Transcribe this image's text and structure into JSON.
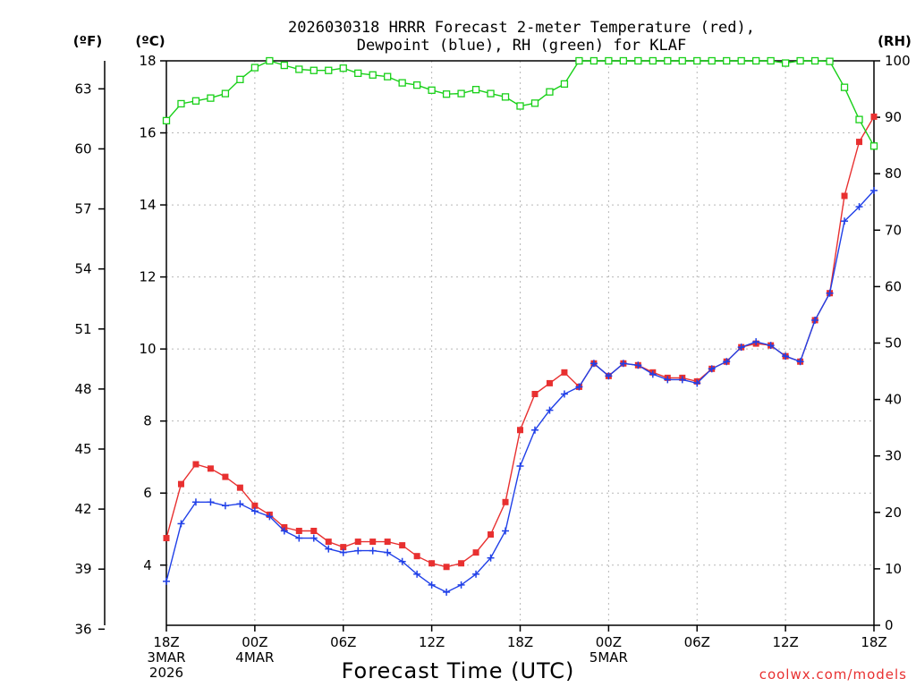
{
  "chart_data": {
    "type": "line",
    "title_line1": "2026030318 HRRR Forecast 2-meter Temperature (red),",
    "title_line2": "Dewpoint (blue), RH (green) for KLAF",
    "xlabel": "Forecast Time (UTC)",
    "credit": "coolwx.com/models",
    "units": {
      "fahrenheit": "(ºF)",
      "celsius": "(ºC)",
      "rh": "(RH)"
    },
    "ylim_celsius": [
      2.33,
      18.0
    ],
    "ylim_rh": [
      0,
      100
    ],
    "yticks_celsius": [
      "4",
      "6",
      "8",
      "10",
      "12",
      "14",
      "16",
      "18"
    ],
    "yticks_fahrenheit": [
      "36",
      "39",
      "42",
      "45",
      "48",
      "51",
      "54",
      "57",
      "60",
      "63"
    ],
    "yticks_rh": [
      "0",
      "10",
      "20",
      "30",
      "40",
      "50",
      "60",
      "70",
      "80",
      "90",
      "100"
    ],
    "xlim_hours": [
      0,
      48
    ],
    "xticks": [
      {
        "hour": 0,
        "lines": [
          "18Z",
          "3MAR",
          "2026"
        ]
      },
      {
        "hour": 6,
        "lines": [
          "00Z",
          "4MAR"
        ]
      },
      {
        "hour": 12,
        "lines": [
          "06Z"
        ]
      },
      {
        "hour": 18,
        "lines": [
          "12Z"
        ]
      },
      {
        "hour": 24,
        "lines": [
          "18Z"
        ]
      },
      {
        "hour": 30,
        "lines": [
          "00Z",
          "5MAR"
        ]
      },
      {
        "hour": 36,
        "lines": [
          "06Z"
        ]
      },
      {
        "hour": 42,
        "lines": [
          "12Z"
        ]
      },
      {
        "hour": 48,
        "lines": [
          "18Z"
        ]
      }
    ],
    "series": [
      {
        "name": "Temperature (red)",
        "color": "#e83030",
        "units": "C",
        "values": [
          4.75,
          6.25,
          6.8,
          6.68,
          6.45,
          6.15,
          5.65,
          5.4,
          5.05,
          4.95,
          4.95,
          4.65,
          4.5,
          4.65,
          4.65,
          4.65,
          4.55,
          4.25,
          4.05,
          3.95,
          4.05,
          4.35,
          4.85,
          5.75,
          7.75,
          8.75,
          9.05,
          9.35,
          8.95,
          9.6,
          9.25,
          9.6,
          9.55,
          9.35,
          9.2,
          9.2,
          9.1,
          9.45,
          9.65,
          10.05,
          10.15,
          10.1,
          9.8,
          9.65,
          10.8,
          11.55,
          14.25,
          15.75,
          16.45
        ]
      },
      {
        "name": "Dewpoint (blue)",
        "color": "#2040e8",
        "units": "C",
        "values": [
          3.55,
          5.15,
          5.75,
          5.75,
          5.65,
          5.7,
          5.5,
          5.35,
          4.95,
          4.75,
          4.75,
          4.45,
          4.35,
          4.4,
          4.4,
          4.35,
          4.1,
          3.75,
          3.45,
          3.25,
          3.45,
          3.75,
          4.2,
          4.95,
          6.75,
          7.75,
          8.3,
          8.75,
          8.95,
          9.6,
          9.25,
          9.6,
          9.55,
          9.3,
          9.15,
          9.15,
          9.05,
          9.45,
          9.65,
          10.05,
          10.2,
          10.1,
          9.8,
          9.65,
          10.8,
          11.55,
          13.55,
          13.95,
          14.4
        ]
      },
      {
        "name": "RH (green)",
        "color": "#18d018",
        "units": "%",
        "values": [
          89.4,
          92.4,
          92.9,
          93.4,
          94.2,
          96.7,
          98.8,
          100,
          99.2,
          98.5,
          98.3,
          98.3,
          98.7,
          97.8,
          97.5,
          97.2,
          96.1,
          95.7,
          94.8,
          94.1,
          94.2,
          94.9,
          94.2,
          93.6,
          92.0,
          92.5,
          94.5,
          95.9,
          100,
          100,
          100,
          100,
          100,
          100,
          100,
          100,
          100,
          100,
          100,
          100,
          100,
          100,
          99.6,
          100,
          100,
          99.9,
          95.3,
          89.6,
          84.9
        ]
      }
    ]
  }
}
